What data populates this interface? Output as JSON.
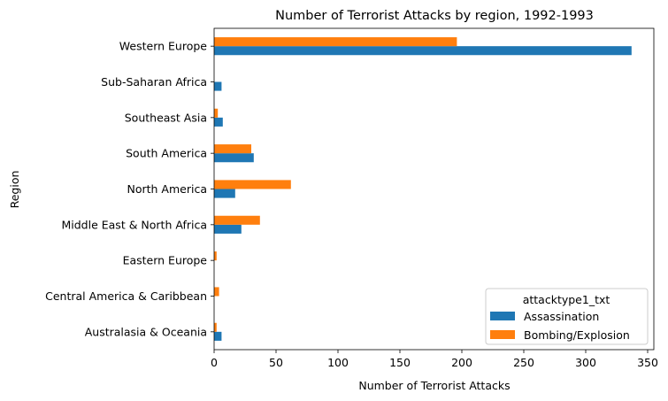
{
  "chart_data": {
    "type": "bar",
    "orientation": "horizontal",
    "title": "Number of Terrorist Attacks by region, 1992-1993",
    "xlabel": "Number of Terrorist Attacks",
    "ylabel": "Region",
    "categories": [
      "Australasia & Oceania",
      "Central America & Caribbean",
      "Eastern Europe",
      "Middle East & North Africa",
      "North America",
      "South America",
      "Southeast Asia",
      "Sub-Saharan Africa",
      "Western Europe"
    ],
    "series": [
      {
        "name": "Assassination",
        "color": "#1f77b4",
        "values": [
          6,
          0,
          0,
          22,
          17,
          32,
          7,
          6,
          337
        ]
      },
      {
        "name": "Bombing/Explosion",
        "color": "#ff7f0e",
        "values": [
          2,
          4,
          2,
          37,
          62,
          30,
          3,
          0,
          196
        ]
      }
    ],
    "xlim": [
      0,
      355
    ],
    "xticks": [
      0,
      50,
      100,
      150,
      200,
      250,
      300,
      350
    ],
    "grid": false,
    "legend": {
      "title": "attacktype1_txt",
      "placement": "lower-right"
    }
  }
}
